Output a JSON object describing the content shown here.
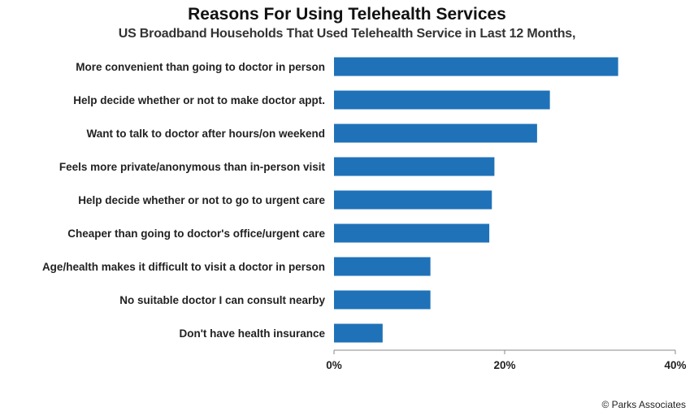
{
  "chart_data": {
    "type": "bar",
    "orientation": "horizontal",
    "title": "Reasons For Using Telehealth Services",
    "subtitle": "US Broadband Households That Used Telehealth Service in Last 12 Months,",
    "categories": [
      "More convenient than going to doctor in person",
      "Help decide whether or not to make doctor appt.",
      "Want to talk to doctor after hours/on weekend",
      "Feels more private/anonymous than in-person visit",
      "Help decide whether or not to go to urgent care",
      "Cheaper than going to doctor's office/urgent care",
      "Age/health makes it difficult to visit a doctor in person",
      "No suitable doctor I can consult nearby",
      "Don't have health insurance"
    ],
    "values": [
      33.3,
      25.3,
      23.8,
      18.8,
      18.5,
      18.2,
      11.3,
      11.3,
      5.7
    ],
    "xlim": [
      0,
      40
    ],
    "xticks": [
      "0%",
      "20%",
      "40%"
    ],
    "xtick_values": [
      0,
      20,
      40
    ],
    "grid": false,
    "bar_color": "#1F72B8"
  },
  "credit": "© Parks Associates"
}
